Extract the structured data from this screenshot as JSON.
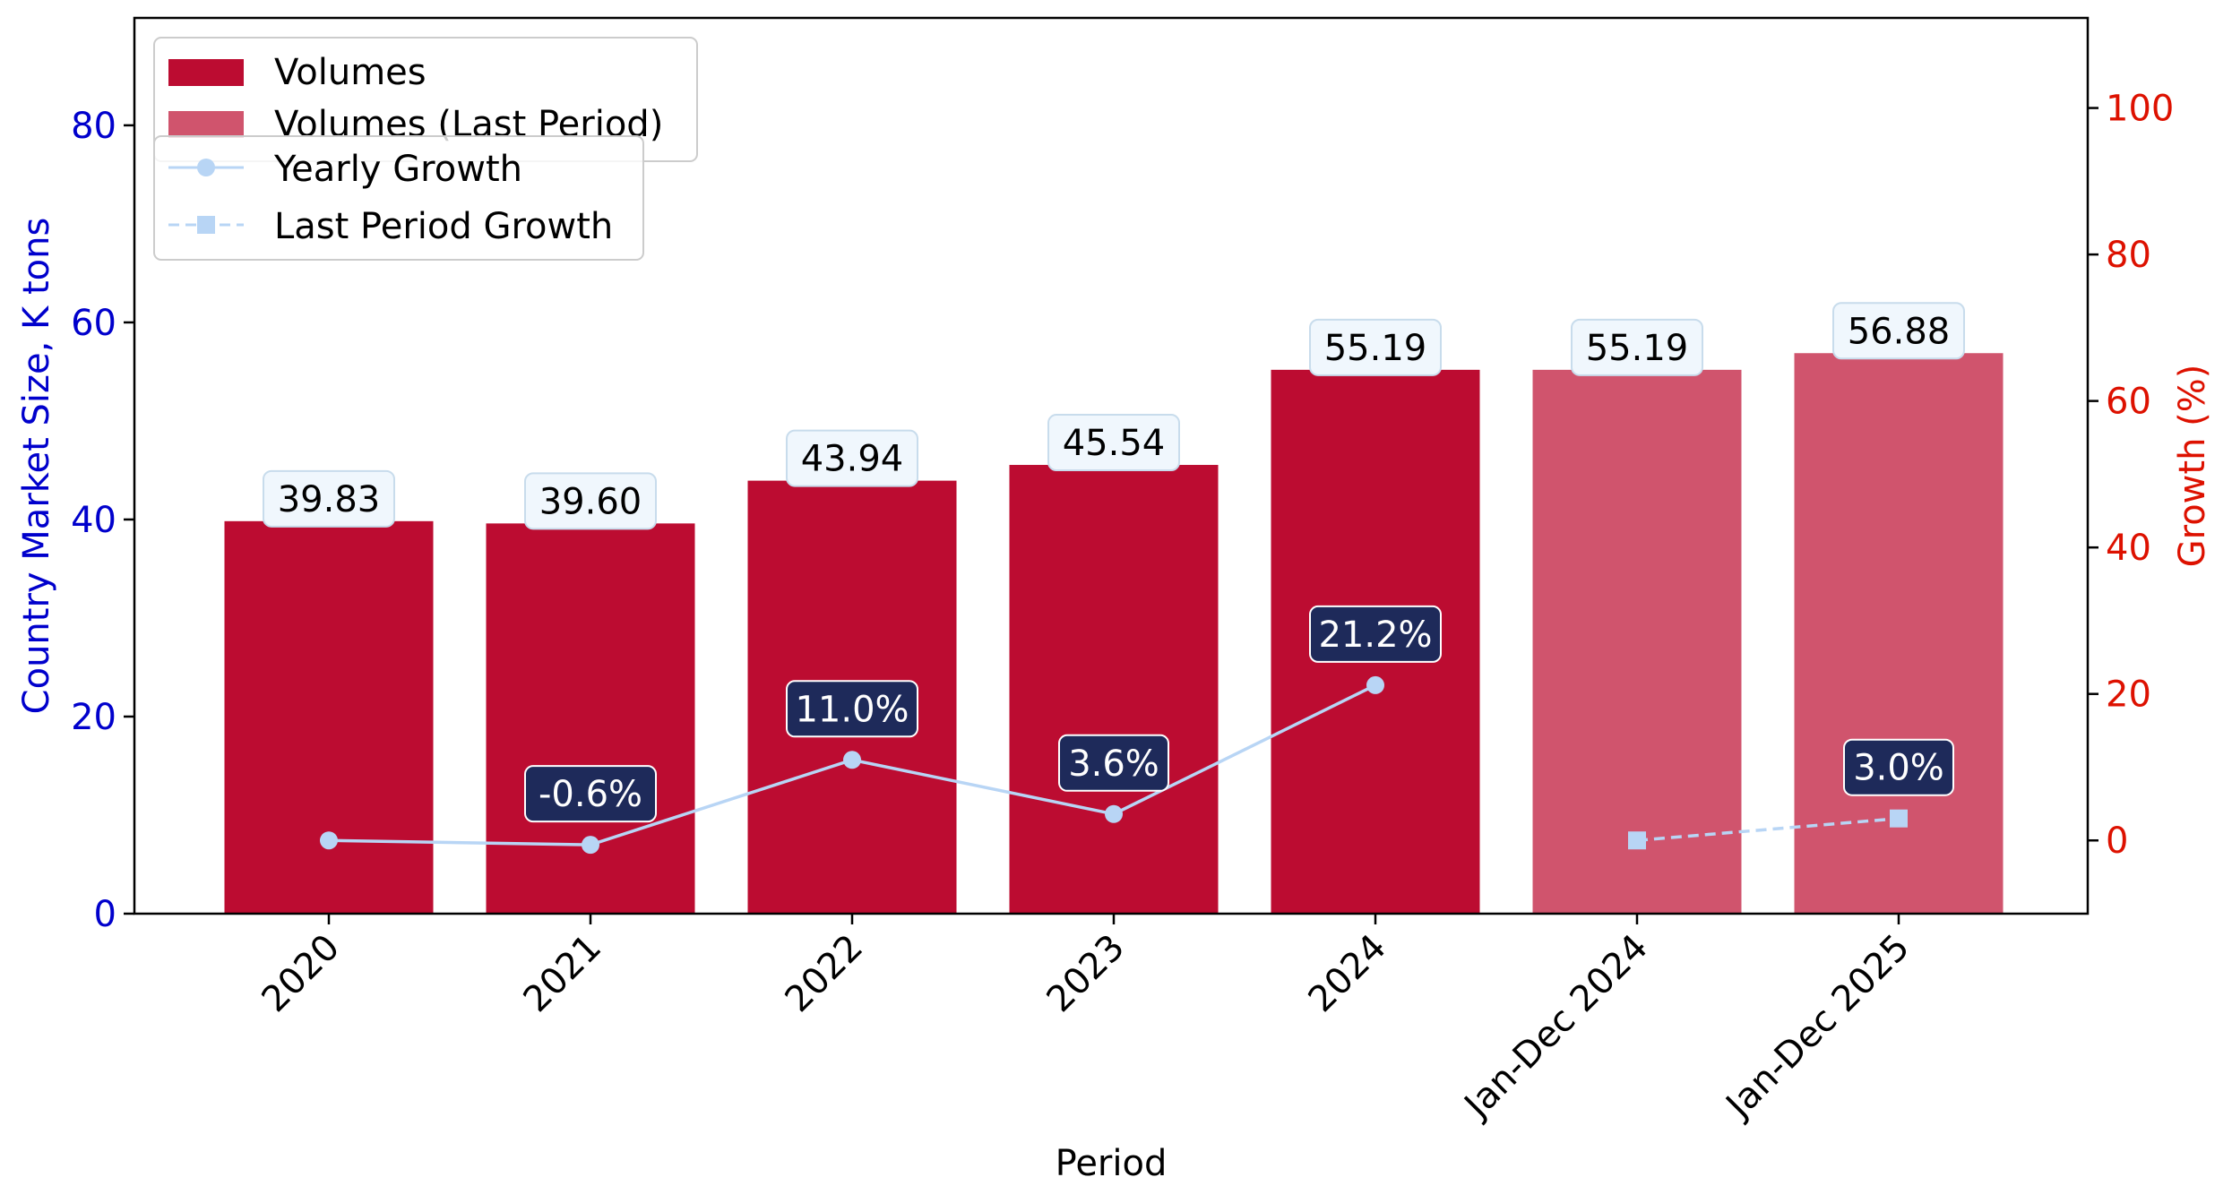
{
  "chart_data": {
    "type": "bar",
    "categories": [
      "2020",
      "2021",
      "2022",
      "2023",
      "2024",
      "Jan-Dec 2024",
      "Jan-Dec 2025"
    ],
    "xlabel": "Period",
    "ylabel": "Country Market Size, K tons",
    "y2label": "Growth (%)",
    "ylim": [
      0,
      90.9
    ],
    "y2lim": [
      -10,
      112.3
    ],
    "yticks": [
      0,
      20,
      40,
      60,
      80
    ],
    "y2ticks": [
      0,
      20,
      40,
      60,
      80,
      100
    ],
    "grid": false,
    "legend_position": "top-left",
    "series": [
      {
        "name": "Volumes",
        "type": "bar",
        "color": "#BC0C31",
        "values": [
          39.83,
          39.6,
          43.94,
          45.54,
          55.19,
          null,
          null
        ],
        "labels": [
          "39.83",
          "39.60",
          "43.94",
          "45.54",
          "55.19",
          null,
          null
        ]
      },
      {
        "name": "Volumes (Last Period)",
        "type": "bar",
        "color": "#D0546D",
        "values": [
          null,
          null,
          null,
          null,
          null,
          55.19,
          56.88
        ],
        "labels": [
          null,
          null,
          null,
          null,
          null,
          "55.19",
          "56.88"
        ]
      },
      {
        "name": "Yearly Growth",
        "type": "line",
        "axis": "right",
        "color": "#B8D5F5",
        "marker": "circle",
        "values": [
          0.0,
          -0.6,
          11.0,
          3.6,
          21.2,
          null,
          null
        ],
        "labels": [
          null,
          "-0.6%",
          "11.0%",
          "3.6%",
          "21.2%",
          null,
          null
        ]
      },
      {
        "name": "Last Period Growth",
        "type": "line",
        "axis": "right",
        "dash": true,
        "color": "#B8D5F5",
        "marker": "square",
        "values": [
          null,
          null,
          null,
          null,
          null,
          0.0,
          3.0
        ],
        "labels": [
          null,
          null,
          null,
          null,
          null,
          null,
          "3.0%"
        ]
      }
    ],
    "colors": {
      "left_axis": "#0000CC",
      "right_axis": "#DD1100",
      "bar_label_bg": "#F0F7FD",
      "growth_label_bg": "#1E2A5A"
    }
  }
}
